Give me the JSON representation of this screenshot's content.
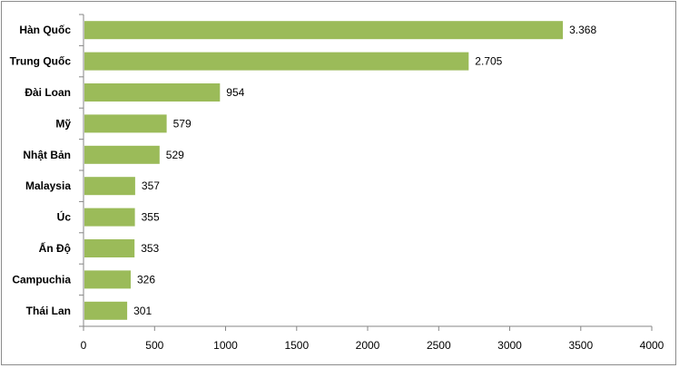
{
  "chart_data": {
    "type": "bar",
    "orientation": "horizontal",
    "title": "",
    "xlabel": "",
    "ylabel": "",
    "categories": [
      "Hàn Quốc",
      "Trung Quốc",
      "Đài Loan",
      "Mỹ",
      "Nhật Bản",
      "Malaysia",
      "Úc",
      "Ấn Độ",
      "Campuchia",
      "Thái Lan"
    ],
    "values": [
      3368,
      2705,
      954,
      579,
      529,
      357,
      355,
      353,
      326,
      301
    ],
    "value_labels": [
      "3.368",
      "2.705",
      "954",
      "579",
      "529",
      "357",
      "355",
      "353",
      "326",
      "301"
    ],
    "xlim": [
      0,
      4000
    ],
    "xticks": [
      0,
      500,
      1000,
      1500,
      2000,
      2500,
      3000,
      3500,
      4000
    ],
    "bar_color": "#9bbb59",
    "grid": false,
    "legend": "none"
  }
}
